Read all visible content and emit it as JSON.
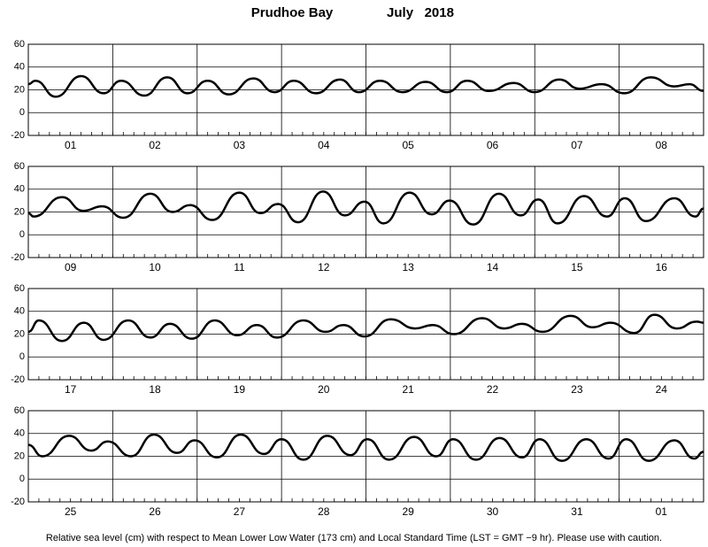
{
  "title": "Prudhoe Bay",
  "date": "July   2018",
  "note": "Relative sea level (cm) with respect to Mean Lower Low Water (173 cm) and Local Standard Time (LST = GMT −9 hr). Please use with caution.",
  "chart_data": [
    {
      "type": "line",
      "categories": [
        "01",
        "02",
        "03",
        "04",
        "05",
        "06",
        "07",
        "08"
      ],
      "xlim": [
        0,
        192
      ],
      "ylim": [
        -20,
        60
      ],
      "yticks": [
        -20,
        0,
        20,
        40,
        60
      ],
      "grid": true,
      "color": "#000000",
      "x": [
        0,
        2,
        7.8,
        15,
        21.4,
        26.4,
        33,
        39.5,
        45.3,
        51,
        57,
        64,
        70,
        75.5,
        81.8,
        88.6,
        94,
        100,
        106.4,
        113,
        119,
        124.8,
        131,
        138,
        144,
        151,
        156.7,
        163,
        169.5,
        177,
        183.7,
        188,
        192
      ],
      "values": [
        25,
        28,
        14,
        32,
        17,
        28,
        15,
        31,
        17,
        28,
        16,
        30,
        18,
        28,
        17,
        29,
        18,
        28,
        18,
        27,
        18,
        28,
        19,
        26,
        18,
        29,
        21,
        25,
        17,
        31,
        23,
        25,
        19
      ]
    },
    {
      "type": "line",
      "categories": [
        "09",
        "10",
        "11",
        "12",
        "13",
        "14",
        "15",
        "16"
      ],
      "xlim": [
        0,
        192
      ],
      "ylim": [
        -20,
        60
      ],
      "yticks": [
        -20,
        0,
        20,
        40,
        60
      ],
      "grid": true,
      "color": "#000000",
      "x": [
        0,
        1.5,
        9.6,
        15.6,
        21,
        27,
        34.7,
        41,
        46,
        52.3,
        60,
        66,
        71,
        76.7,
        83.8,
        90,
        95.6,
        101,
        108.4,
        114.7,
        119.8,
        126.5,
        133.8,
        140,
        145,
        150.5,
        158,
        164.5,
        169.6,
        175.6,
        183.7,
        189.7,
        192
      ],
      "values": [
        19,
        16,
        33,
        21,
        25,
        15,
        36,
        20,
        26,
        13,
        37,
        19,
        27,
        11,
        38,
        17,
        29,
        10,
        37,
        18,
        30,
        9,
        36,
        17,
        31,
        10,
        34,
        16,
        32,
        12,
        32,
        16,
        23
      ]
    },
    {
      "type": "line",
      "categories": [
        "17",
        "18",
        "19",
        "20",
        "21",
        "22",
        "23",
        "24"
      ],
      "xlim": [
        0,
        192
      ],
      "ylim": [
        -20,
        60
      ],
      "yticks": [
        -20,
        0,
        20,
        40,
        60
      ],
      "grid": true,
      "color": "#000000",
      "x": [
        0,
        3,
        9.6,
        15.8,
        21.4,
        28.4,
        34.7,
        40.3,
        46.5,
        53,
        59.4,
        65,
        70.7,
        78.2,
        84.5,
        89.6,
        95.6,
        103,
        110,
        115,
        121,
        129,
        135.3,
        140.4,
        146.2,
        154.2,
        160.5,
        165.5,
        172.3,
        178,
        184.4,
        190,
        192
      ],
      "values": [
        22,
        32,
        14,
        30,
        15,
        32,
        17,
        29,
        16,
        32,
        19,
        28,
        17,
        32,
        22,
        28,
        18,
        33,
        25,
        28,
        20,
        34,
        25,
        29,
        22,
        36,
        26,
        30,
        21,
        37,
        25,
        31,
        30
      ]
    },
    {
      "type": "line",
      "categories": [
        "25",
        "26",
        "27",
        "28",
        "29",
        "30",
        "31",
        "01"
      ],
      "xlim": [
        0,
        192
      ],
      "ylim": [
        -20,
        60
      ],
      "yticks": [
        -20,
        0,
        20,
        40,
        60
      ],
      "grid": true,
      "color": "#000000",
      "x": [
        0,
        4,
        11.6,
        17.9,
        22.6,
        29.2,
        35.7,
        42.3,
        47.3,
        53.6,
        60.4,
        67,
        72,
        78.2,
        85,
        91.6,
        96.4,
        102.6,
        109.7,
        116,
        120.8,
        127.3,
        134,
        140.4,
        145.4,
        151.7,
        158.7,
        165,
        170,
        176.4,
        183.7,
        189.4,
        192
      ],
      "values": [
        30,
        20,
        38,
        25,
        33,
        20,
        39,
        23,
        34,
        19,
        39,
        22,
        35,
        17,
        38,
        21,
        35,
        17,
        37,
        20,
        35,
        17,
        36,
        19,
        35,
        16,
        35,
        18,
        35,
        16,
        34,
        18,
        24
      ]
    }
  ]
}
